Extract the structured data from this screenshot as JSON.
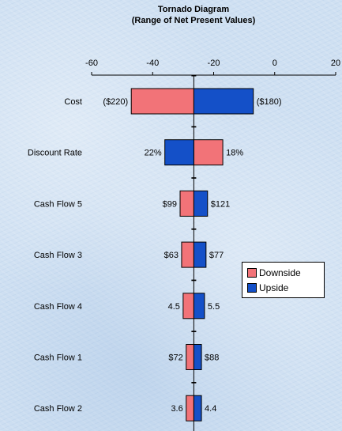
{
  "chart_data": {
    "type": "bar",
    "orientation": "horizontal-tornado",
    "title": "Tornado Diagram",
    "subtitle": "(Range of Net Present Values)",
    "xlim": [
      -60,
      20
    ],
    "xticks": [
      -60,
      -40,
      -20,
      0,
      20
    ],
    "base_value": -26.5,
    "categories": [
      "Cost",
      "Discount Rate",
      "Cash Flow 5",
      "Cash Flow 3",
      "Cash Flow 4",
      "Cash Flow 1",
      "Cash Flow 2"
    ],
    "series": [
      {
        "name": "Downside",
        "color": "#f27378",
        "values": [
          -47,
          -17,
          -31,
          -30.5,
          -30,
          -29,
          -29
        ],
        "labels": [
          "($220)",
          "18%",
          "$99",
          "$63",
          "4.5",
          "$72",
          "3.6"
        ]
      },
      {
        "name": "Upside",
        "color": "#1450c8",
        "values": [
          -7,
          -36,
          -22,
          -22.5,
          -23,
          -24,
          -24
        ],
        "labels": [
          "($180)",
          "22%",
          "$121",
          "$77",
          "5.5",
          "$88",
          "4.4"
        ]
      }
    ],
    "legend": "right",
    "grid": false
  }
}
